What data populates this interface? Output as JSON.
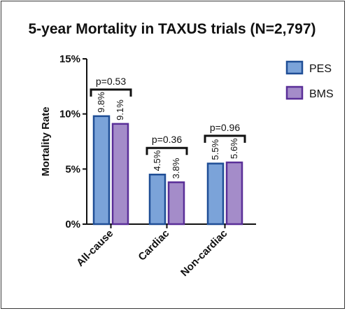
{
  "chart_data": {
    "type": "bar",
    "title": "5-year Mortality in TAXUS trials (N=2,797)",
    "xlabel": "",
    "ylabel": "Mortality Rate",
    "ylim": [
      0,
      15
    ],
    "yticks": [
      {
        "value": 0,
        "label": "0%"
      },
      {
        "value": 5,
        "label": "5%"
      },
      {
        "value": 10,
        "label": "10%"
      },
      {
        "value": 15,
        "label": "15%"
      }
    ],
    "categories": [
      "All-cause",
      "Cardiac",
      "Non-cardiac"
    ],
    "series": [
      {
        "name": "PES",
        "values": [
          9.8,
          4.5,
          5.5
        ],
        "labels": [
          "9.8%",
          "4.5%",
          "5.5%"
        ],
        "fill": "#7ba3d9",
        "stroke": "#1f4e96"
      },
      {
        "name": "BMS",
        "values": [
          9.1,
          3.8,
          5.6
        ],
        "labels": [
          "9.1%",
          "3.8%",
          "5.6%"
        ],
        "fill": "#a48cc9",
        "stroke": "#5a2f98"
      }
    ],
    "pvalues": [
      "p=0.53",
      "p=0.36",
      "p=0.96"
    ],
    "legend_position": "right",
    "grid": false
  }
}
